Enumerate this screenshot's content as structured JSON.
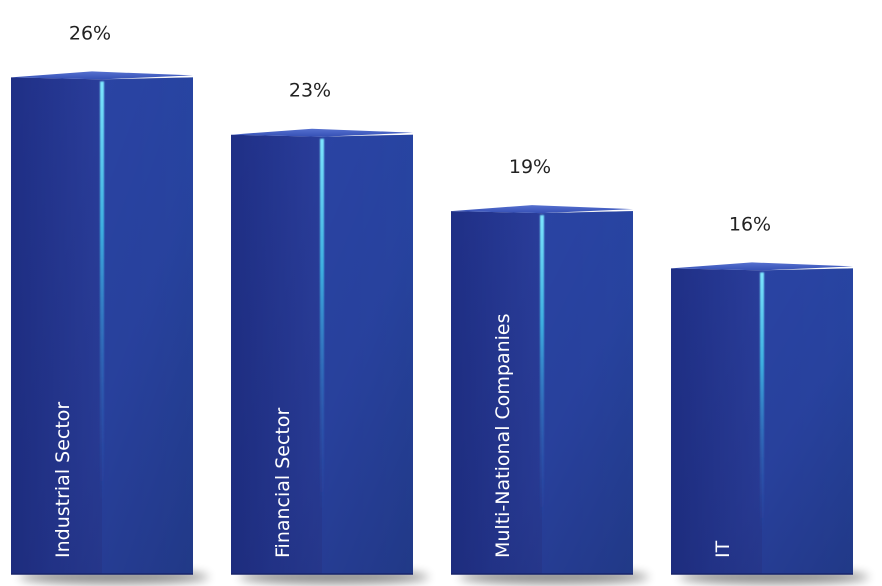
{
  "chart_data": {
    "type": "bar",
    "title": "",
    "xlabel": "",
    "ylabel": "",
    "categories": [
      "Industrial Sector",
      "Financial Sector",
      "Multi-National Companies",
      "IT"
    ],
    "values": [
      26,
      23,
      19,
      16
    ],
    "value_labels": [
      "26%",
      "23%",
      "19%",
      "16%"
    ],
    "unit": "%",
    "ylim": [
      0,
      30
    ],
    "grid": false,
    "legend": "none",
    "colors": {
      "bar_front_left": "#23358f",
      "bar_front_right": "#2a45a6",
      "bar_top": "#3c55b8",
      "highlight": "#62d8f5",
      "shadow": "#000000",
      "value_text": "#222222",
      "category_text": "#ffffff"
    }
  }
}
